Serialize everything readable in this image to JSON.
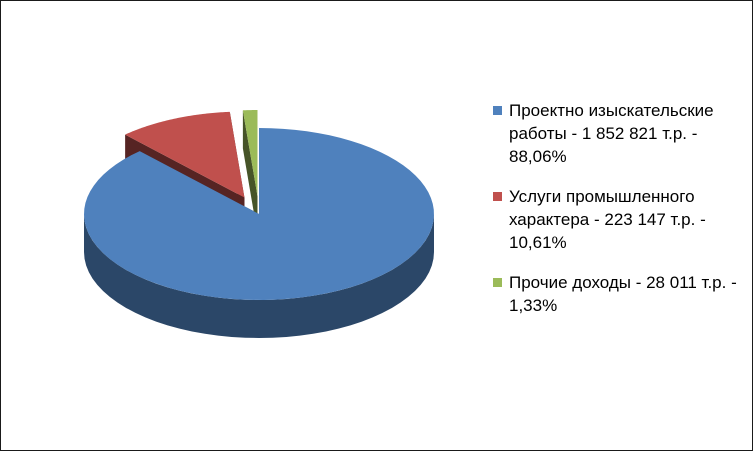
{
  "chart_data": {
    "type": "pie",
    "title": "",
    "exploded": true,
    "style": "3d",
    "slices": [
      {
        "label": "Проектно изыскательские работы - 1 852 821 т.р. - 88,06%",
        "value": 1852821,
        "percent": 88.06,
        "color": "#4f81bd"
      },
      {
        "label": "Услуги промышленного характера - 223 147 т.р. - 10,61%",
        "value": 223147,
        "percent": 10.61,
        "color": "#c0504d"
      },
      {
        "label": "Прочие доходы - 28 011 т.р. - 1,33%",
        "value": 28011,
        "percent": 1.33,
        "color": "#9bbb59"
      }
    ],
    "legend_position": "right"
  }
}
